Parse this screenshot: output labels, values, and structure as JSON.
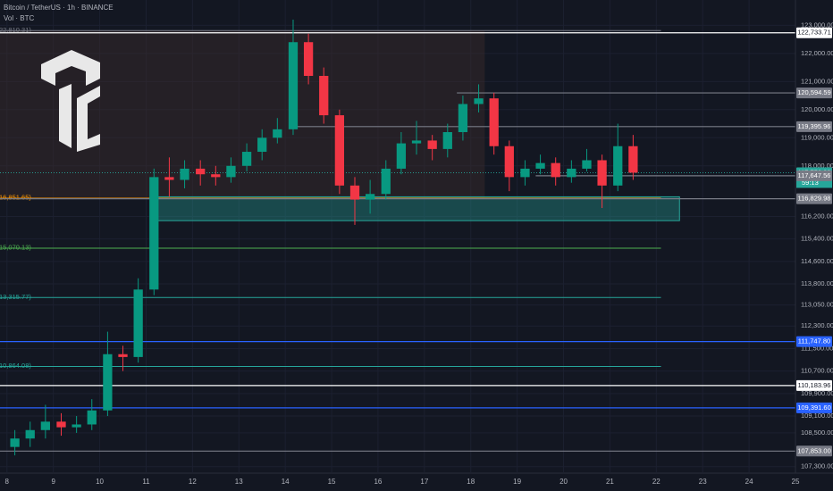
{
  "chart_data": {
    "type": "candlestick",
    "title": "Bitcoin / TetherUS · 1h · BINANCE",
    "subtitle": "Vol · BTC",
    "x": [
      8.17,
      8.5,
      8.83,
      9.17,
      9.5,
      9.83,
      10.17,
      10.5,
      10.83,
      11.17,
      11.5,
      11.83,
      12.17,
      12.5,
      12.83,
      13.17,
      13.5,
      13.83,
      14.17,
      14.5,
      14.83,
      15.17,
      15.5,
      15.83,
      16.17,
      16.5,
      16.83,
      17.17,
      17.5,
      17.83,
      18.17,
      18.5,
      18.83,
      19.17,
      19.5,
      19.83,
      20.17,
      20.5,
      20.83,
      21.17,
      21.5
    ],
    "open": [
      108000,
      108300,
      108600,
      108900,
      108700,
      108800,
      109300,
      111300,
      111200,
      113600,
      117600,
      117500,
      117900,
      117700,
      117600,
      118000,
      118500,
      119000,
      119300,
      122400,
      121200,
      119800,
      117300,
      116800,
      117000,
      117900,
      118800,
      118900,
      118600,
      119200,
      120200,
      120400,
      118700,
      117600,
      117900,
      118100,
      117600,
      117900,
      118200,
      117300,
      118700
    ],
    "high": [
      108600,
      108900,
      109500,
      109200,
      109100,
      109700,
      112100,
      111600,
      114000,
      117900,
      118300,
      118200,
      118200,
      118000,
      118300,
      118800,
      119300,
      119700,
      123200,
      122700,
      121500,
      120000,
      117600,
      117500,
      118200,
      119200,
      119600,
      119100,
      119500,
      120500,
      120900,
      120600,
      118900,
      118200,
      118400,
      118300,
      118200,
      118600,
      118400,
      119500,
      119100
    ],
    "low": [
      107700,
      108000,
      108300,
      108400,
      108500,
      108600,
      109100,
      110700,
      111000,
      113400,
      116900,
      117200,
      117300,
      117300,
      117400,
      117800,
      118200,
      118800,
      119100,
      120900,
      119500,
      117000,
      115900,
      116300,
      116800,
      117700,
      118400,
      118200,
      118300,
      118900,
      119900,
      118400,
      117100,
      117300,
      117700,
      117300,
      117400,
      117800,
      116500,
      117100,
      117500
    ],
    "close": [
      108300,
      108600,
      108900,
      108700,
      108800,
      109300,
      111300,
      111200,
      113600,
      117600,
      117500,
      117900,
      117700,
      117600,
      118000,
      118500,
      119000,
      119300,
      122400,
      121200,
      119800,
      117300,
      116800,
      117000,
      117900,
      118800,
      118900,
      118600,
      119200,
      120200,
      120400,
      118700,
      117600,
      117900,
      118100,
      117600,
      117900,
      118200,
      117300,
      118700,
      117756.08
    ],
    "up_color": "#089981",
    "down_color": "#f23645",
    "xlim": [
      7.85,
      25
    ],
    "xticks": [
      8,
      9,
      10,
      11,
      12,
      13,
      14,
      15,
      16,
      17,
      18,
      19,
      20,
      21,
      22,
      23,
      24,
      25
    ],
    "ylim": [
      107100,
      123900
    ],
    "yticks": [
      {
        "value": 123000,
        "label": "123,000.00"
      },
      {
        "value": 122000,
        "label": "122,000.00"
      },
      {
        "value": 121000,
        "label": "121,000.00"
      },
      {
        "value": 120000,
        "label": "120,000.00"
      },
      {
        "value": 119000,
        "label": "119,000.00"
      },
      {
        "value": 118000,
        "label": "118,000.00"
      },
      {
        "value": 116200,
        "label": "116,200.00"
      },
      {
        "value": 115400,
        "label": "115,400.00"
      },
      {
        "value": 114600,
        "label": "114,600.00"
      },
      {
        "value": 113800,
        "label": "113,800.00"
      },
      {
        "value": 113050,
        "label": "113,050.00"
      },
      {
        "value": 112300,
        "label": "112,300.00"
      },
      {
        "value": 111500,
        "label": "111,500.00"
      },
      {
        "value": 110700,
        "label": "110,700.00"
      },
      {
        "value": 109900,
        "label": "109,900.00"
      },
      {
        "value": 109100,
        "label": "109,100.00"
      },
      {
        "value": 108500,
        "label": "108,500.00"
      },
      {
        "value": 107300,
        "label": "107,300.00"
      }
    ],
    "grid": true,
    "range_box": {
      "low": 116851.65,
      "high": 122810.31,
      "x": [
        7.85,
        18.3
      ]
    },
    "zone": {
      "low": 116050,
      "high": 116900,
      "x": [
        11.17,
        22.5
      ]
    },
    "levels": [
      {
        "value": 122733.71,
        "label": "122,733.71",
        "color": "#ffffff",
        "x": [
          7.85,
          25
        ]
      },
      {
        "value": 120594.59,
        "label": "120,594.59",
        "color": "#787b86",
        "x": [
          17.7,
          25
        ]
      },
      {
        "value": 119395.96,
        "label": "119,395.96",
        "color": "#787b86",
        "x": [
          14.1,
          25
        ]
      },
      {
        "value": 117756.08,
        "label": "117,756.08",
        "color": "#26a69a",
        "x": [
          7.85,
          25
        ],
        "note": "59:13"
      },
      {
        "value": 117647.56,
        "label": "117,647.56",
        "color": "#787b86",
        "x": [
          19.4,
          25
        ]
      },
      {
        "value": 116829.98,
        "label": "116,829.98",
        "color": "#787b86",
        "x": [
          7.85,
          25
        ]
      },
      {
        "value": 111747.8,
        "label": "111,747.80",
        "color": "#2962ff",
        "x": [
          7.85,
          25
        ]
      },
      {
        "value": 110183.96,
        "label": "110,183.96",
        "color": "#ffffff",
        "x": [
          7.85,
          25
        ]
      },
      {
        "value": 109391.6,
        "label": "109,391.60",
        "color": "#2962ff",
        "x": [
          7.85,
          25
        ]
      },
      {
        "value": 107853.0,
        "label": "107,853.00",
        "color": "#787b86",
        "x": [
          7.85,
          25
        ]
      }
    ],
    "fib_lines": [
      {
        "value": 122810.31,
        "label": "22,810.31)",
        "color": "#787b86",
        "x": [
          7.85,
          22.1
        ]
      },
      {
        "value": 116851.65,
        "label": "16,851.65)",
        "color": "#ff9800",
        "x": [
          7.85,
          22.1
        ]
      },
      {
        "value": 115070.13,
        "label": "15,070.13)",
        "color": "#4caf50",
        "x": [
          7.85,
          22.1
        ]
      },
      {
        "value": 113315.77,
        "label": "13,315.77)",
        "color": "#26a69a",
        "x": [
          7.85,
          22.1
        ]
      },
      {
        "value": 110864.08,
        "label": "10,864.08)",
        "color": "#26a69a",
        "x": [
          7.85,
          22.1
        ]
      }
    ]
  }
}
